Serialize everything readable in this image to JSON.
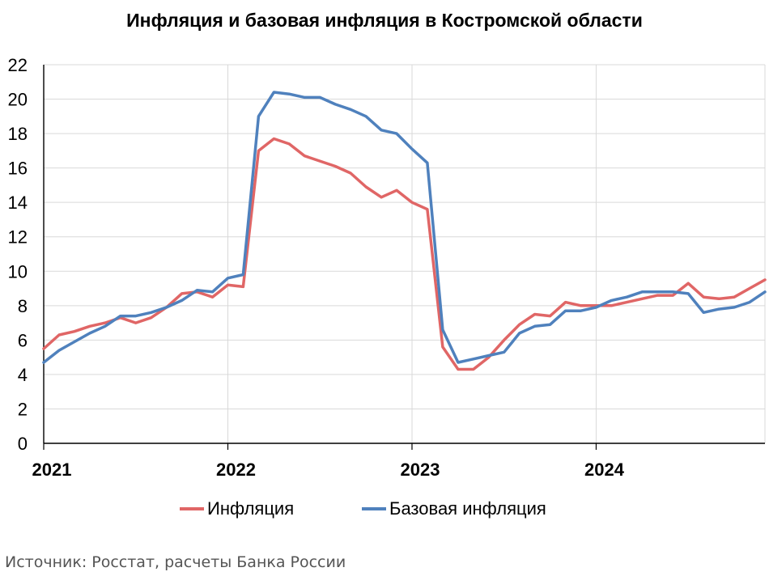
{
  "title": "Инфляция и базовая инфляция в Костромской области",
  "source": "Источник: Росстат, расчеты Банка России",
  "chart_data": {
    "type": "line",
    "title": "Инфляция и базовая инфляция в Костромской области",
    "x": [
      "2021-01",
      "2021-02",
      "2021-03",
      "2021-04",
      "2021-05",
      "2021-06",
      "2021-07",
      "2021-08",
      "2021-09",
      "2021-10",
      "2021-11",
      "2021-12",
      "2022-01",
      "2022-02",
      "2022-03",
      "2022-04",
      "2022-05",
      "2022-06",
      "2022-07",
      "2022-08",
      "2022-09",
      "2022-10",
      "2022-11",
      "2022-12",
      "2023-01",
      "2023-02",
      "2023-03",
      "2023-04",
      "2023-05",
      "2023-06",
      "2023-07",
      "2023-08",
      "2023-09",
      "2023-10",
      "2023-11",
      "2023-12",
      "2024-01",
      "2024-02",
      "2024-03",
      "2024-04",
      "2024-05",
      "2024-06",
      "2024-07",
      "2024-08",
      "2024-09",
      "2024-10",
      "2024-11",
      "2024-12"
    ],
    "x_tick_labels": [
      "2021",
      "2022",
      "2023",
      "2024"
    ],
    "ylim": [
      0,
      22
    ],
    "y_ticks": [
      0,
      2,
      4,
      6,
      8,
      10,
      12,
      14,
      16,
      18,
      20,
      22
    ],
    "grid": true,
    "legend_position": "bottom",
    "series": [
      {
        "name": "Инфляция",
        "color": "#e06666",
        "values": [
          5.5,
          6.3,
          6.5,
          6.8,
          7.0,
          7.3,
          7.0,
          7.3,
          7.9,
          8.7,
          8.8,
          8.5,
          9.2,
          9.1,
          17.0,
          17.7,
          17.4,
          16.7,
          16.4,
          16.1,
          15.7,
          14.9,
          14.3,
          14.7,
          14.0,
          13.6,
          5.6,
          4.3,
          4.3,
          5.0,
          6.0,
          6.9,
          7.5,
          7.4,
          8.2,
          8.0,
          8.0,
          8.0,
          8.2,
          8.4,
          8.6,
          8.6,
          9.3,
          8.5,
          8.4,
          8.5,
          9.0,
          9.5
        ]
      },
      {
        "name": "Базовая инфляция",
        "color": "#4f81bd",
        "values": [
          4.7,
          5.4,
          5.9,
          6.4,
          6.8,
          7.4,
          7.4,
          7.6,
          7.9,
          8.3,
          8.9,
          8.8,
          9.6,
          9.8,
          19.0,
          20.4,
          20.3,
          20.1,
          20.1,
          19.7,
          19.4,
          19.0,
          18.2,
          18.0,
          17.1,
          16.3,
          6.6,
          4.7,
          4.9,
          5.1,
          5.3,
          6.4,
          6.8,
          6.9,
          7.7,
          7.7,
          7.9,
          8.3,
          8.5,
          8.8,
          8.8,
          8.8,
          8.7,
          7.6,
          7.8,
          7.9,
          8.2,
          8.8
        ]
      }
    ]
  }
}
